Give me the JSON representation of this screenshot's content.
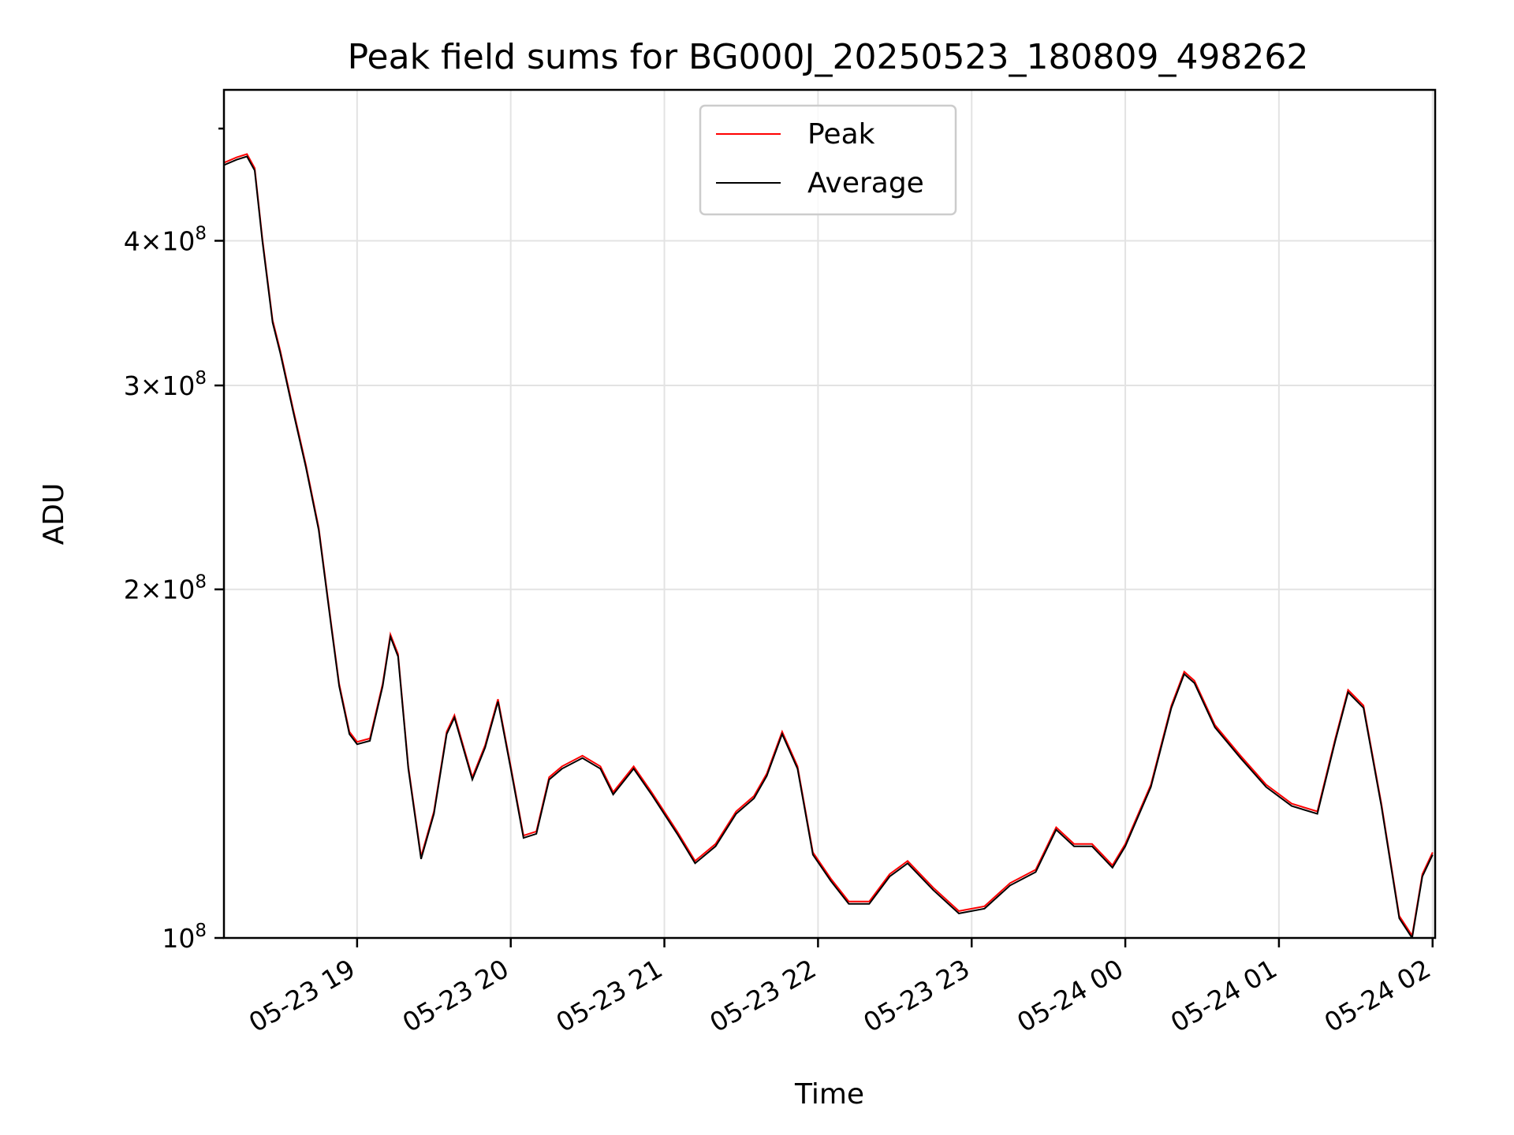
{
  "chart_data": {
    "type": "line",
    "title": "Peak field sums for BG000J_20250523_180809_498262",
    "xlabel": "Time",
    "ylabel": "ADU",
    "y_scale": "log",
    "ylim": [
      100000000,
      540000000
    ],
    "xlim": [
      "2025-05-23 18:08",
      "2025-05-24 02:01"
    ],
    "grid": true,
    "legend_position": "upper-center",
    "x_ticks": [
      {
        "t": "2025-05-23 19:00",
        "label": "05-23 19"
      },
      {
        "t": "2025-05-23 20:00",
        "label": "05-23 20"
      },
      {
        "t": "2025-05-23 21:00",
        "label": "05-23 21"
      },
      {
        "t": "2025-05-23 22:00",
        "label": "05-23 22"
      },
      {
        "t": "2025-05-23 23:00",
        "label": "05-23 23"
      },
      {
        "t": "2025-05-24 00:00",
        "label": "05-24 00"
      },
      {
        "t": "2025-05-24 01:00",
        "label": "05-24 01"
      },
      {
        "t": "2025-05-24 02:00",
        "label": "05-24 02"
      }
    ],
    "y_ticks": [
      {
        "value": 100000000,
        "mantissa": "",
        "exp": "8"
      },
      {
        "value": 200000000,
        "mantissa": "2",
        "exp": "8"
      },
      {
        "value": 300000000,
        "mantissa": "3",
        "exp": "8"
      },
      {
        "value": 400000000,
        "mantissa": "4",
        "exp": "8"
      }
    ],
    "series": [
      {
        "name": "Average",
        "color": "#000000",
        "points": [
          [
            "2025-05-23 18:08",
            465000000
          ],
          [
            "2025-05-23 18:13",
            470000000
          ],
          [
            "2025-05-23 18:17",
            473000000
          ],
          [
            "2025-05-23 18:20",
            460000000
          ],
          [
            "2025-05-23 18:23",
            400000000
          ],
          [
            "2025-05-23 18:27",
            340000000
          ],
          [
            "2025-05-23 18:30",
            320000000
          ],
          [
            "2025-05-23 18:35",
            285000000
          ],
          [
            "2025-05-23 18:40",
            255000000
          ],
          [
            "2025-05-23 18:45",
            225000000
          ],
          [
            "2025-05-23 18:50",
            185000000
          ],
          [
            "2025-05-23 18:53",
            165000000
          ],
          [
            "2025-05-23 18:57",
            150000000
          ],
          [
            "2025-05-23 19:00",
            147000000
          ],
          [
            "2025-05-23 19:05",
            148000000
          ],
          [
            "2025-05-23 19:10",
            165000000
          ],
          [
            "2025-05-23 19:13",
            182000000
          ],
          [
            "2025-05-23 19:16",
            175000000
          ],
          [
            "2025-05-23 19:20",
            140000000
          ],
          [
            "2025-05-23 19:25",
            117000000
          ],
          [
            "2025-05-23 19:30",
            128000000
          ],
          [
            "2025-05-23 19:35",
            150000000
          ],
          [
            "2025-05-23 19:38",
            155000000
          ],
          [
            "2025-05-23 19:45",
            137000000
          ],
          [
            "2025-05-23 19:50",
            146000000
          ],
          [
            "2025-05-23 19:55",
            160000000
          ],
          [
            "2025-05-23 20:00",
            140000000
          ],
          [
            "2025-05-23 20:05",
            122000000
          ],
          [
            "2025-05-23 20:10",
            123000000
          ],
          [
            "2025-05-23 20:15",
            137000000
          ],
          [
            "2025-05-23 20:20",
            140000000
          ],
          [
            "2025-05-23 20:28",
            143000000
          ],
          [
            "2025-05-23 20:35",
            140000000
          ],
          [
            "2025-05-23 20:40",
            133000000
          ],
          [
            "2025-05-23 20:48",
            140000000
          ],
          [
            "2025-05-23 20:55",
            133000000
          ],
          [
            "2025-05-23 21:05",
            123000000
          ],
          [
            "2025-05-23 21:12",
            116000000
          ],
          [
            "2025-05-23 21:20",
            120000000
          ],
          [
            "2025-05-23 21:28",
            128000000
          ],
          [
            "2025-05-23 21:35",
            132000000
          ],
          [
            "2025-05-23 21:40",
            138000000
          ],
          [
            "2025-05-23 21:46",
            150000000
          ],
          [
            "2025-05-23 21:52",
            140000000
          ],
          [
            "2025-05-23 21:58",
            118000000
          ],
          [
            "2025-05-23 22:05",
            112000000
          ],
          [
            "2025-05-23 22:12",
            107000000
          ],
          [
            "2025-05-23 22:20",
            107000000
          ],
          [
            "2025-05-23 22:28",
            113000000
          ],
          [
            "2025-05-23 22:35",
            116000000
          ],
          [
            "2025-05-23 22:45",
            110000000
          ],
          [
            "2025-05-23 22:55",
            105000000
          ],
          [
            "2025-05-23 23:05",
            106000000
          ],
          [
            "2025-05-23 23:15",
            111000000
          ],
          [
            "2025-05-23 23:25",
            114000000
          ],
          [
            "2025-05-23 23:33",
            124000000
          ],
          [
            "2025-05-23 23:40",
            120000000
          ],
          [
            "2025-05-23 23:47",
            120000000
          ],
          [
            "2025-05-23 23:55",
            115000000
          ],
          [
            "2025-05-24 00:00",
            120000000
          ],
          [
            "2025-05-24 00:10",
            135000000
          ],
          [
            "2025-05-24 00:18",
            158000000
          ],
          [
            "2025-05-24 00:23",
            169000000
          ],
          [
            "2025-05-24 00:27",
            166000000
          ],
          [
            "2025-05-24 00:35",
            152000000
          ],
          [
            "2025-05-24 00:45",
            143000000
          ],
          [
            "2025-05-24 00:55",
            135000000
          ],
          [
            "2025-05-24 01:05",
            130000000
          ],
          [
            "2025-05-24 01:15",
            128000000
          ],
          [
            "2025-05-24 01:22",
            148000000
          ],
          [
            "2025-05-24 01:27",
            163000000
          ],
          [
            "2025-05-24 01:33",
            158000000
          ],
          [
            "2025-05-24 01:40",
            130000000
          ],
          [
            "2025-05-24 01:47",
            104000000
          ],
          [
            "2025-05-24 01:52",
            100000000
          ],
          [
            "2025-05-24 01:56",
            113000000
          ],
          [
            "2025-05-24 02:00",
            118000000
          ]
        ]
      }
    ],
    "legend": {
      "items": [
        "Peak",
        "Average"
      ]
    }
  }
}
